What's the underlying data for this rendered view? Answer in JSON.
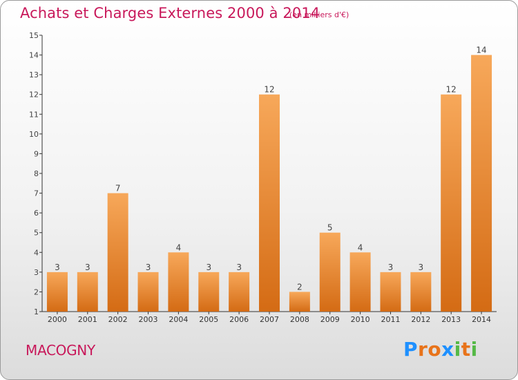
{
  "header": {
    "title": "Achats et Charges Externes 2000 à 2014",
    "subtitle": "(en milliers d'€)"
  },
  "footer": {
    "commune": "MACOGNY",
    "logo": [
      "P",
      "r",
      "o",
      "x",
      "i",
      "t",
      "i"
    ]
  },
  "colors": {
    "title": "#c8185a",
    "bar_top": "#f7a85a",
    "bar_bottom": "#d46b14",
    "axis": "#333333",
    "logo": [
      "#1e90ff",
      "#e8731a",
      "#e8731a",
      "#1e90ff",
      "#55b947",
      "#e8731a",
      "#55b947"
    ]
  },
  "chart_data": {
    "type": "bar",
    "title": "Achats et Charges Externes 2000 à 2014",
    "subtitle": "(en milliers d'€)",
    "categories": [
      "2000",
      "2001",
      "2002",
      "2003",
      "2004",
      "2005",
      "2006",
      "2007",
      "2008",
      "2009",
      "2010",
      "2011",
      "2012",
      "2013",
      "2014"
    ],
    "values": [
      3,
      3,
      7,
      3,
      4,
      3,
      3,
      12,
      2,
      5,
      4,
      3,
      3,
      12,
      14
    ],
    "data_labels": [
      "3",
      "3",
      "7",
      "3",
      "4",
      "3",
      "3",
      "12",
      "2",
      "5",
      "4",
      "3",
      "3",
      "12",
      "14"
    ],
    "ylim": [
      1,
      15
    ],
    "yticks": [
      1,
      2,
      3,
      4,
      5,
      6,
      7,
      8,
      9,
      10,
      11,
      12,
      13,
      14,
      15
    ],
    "ytick_labels": [
      "1",
      "2",
      "3",
      "4",
      "5",
      "6",
      "7",
      "8",
      "9",
      "10",
      "11",
      "12",
      "13",
      "14",
      "15"
    ],
    "xlabel": "",
    "ylabel": "",
    "grid": false,
    "legend": "none"
  }
}
